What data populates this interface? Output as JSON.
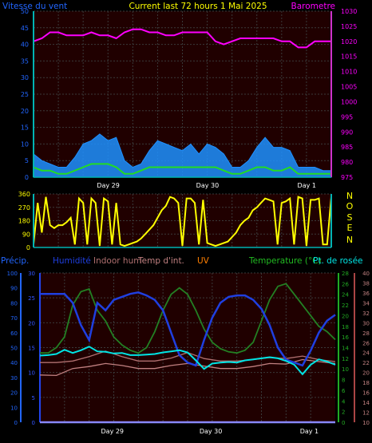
{
  "header": {
    "left": "Vitesse du vent",
    "center": "Current last 72 hours 1 Mai 2025",
    "right": "Barometre"
  },
  "colors": {
    "wind_label": "#2266ff",
    "title": "#ffff00",
    "baro_label": "#ff00ff",
    "wind_max": "#1e90ff",
    "wind_avg": "#22dd22",
    "baro": "#ff00ff",
    "dir": "#ffff00",
    "cardinal": "#ffff00",
    "precip_label": "#2266ff",
    "humidity": "#1f3fe0",
    "indoor_hum": "#b07070",
    "indoor_temp": "#c08080",
    "uv": "#ff7f00",
    "temp_label": "#22bb22",
    "dew": "#00e5e5",
    "temp": "#238023",
    "plot_bg": "#200000",
    "grid": "#3a3a3a"
  },
  "chart_data": [
    {
      "type": "line",
      "id": "wind_baro",
      "x_range": [
        0,
        72
      ],
      "day_labels": [
        {
          "x": 20,
          "label": "Day 29"
        },
        {
          "x": 44,
          "label": "Day 30"
        },
        {
          "x": 68,
          "label": "Day 1"
        }
      ],
      "y_left": {
        "label": "Vitesse du vent",
        "range": [
          0,
          50
        ],
        "ticks": [
          0,
          5,
          10,
          15,
          20,
          25,
          30,
          35,
          40,
          45,
          50
        ]
      },
      "y_right": {
        "label": "Barometre",
        "range": [
          975,
          1030
        ],
        "ticks": [
          975,
          980,
          985,
          990,
          995,
          1000,
          1005,
          1010,
          1015,
          1020,
          1025,
          1030
        ]
      },
      "series": [
        {
          "key": "wind_max",
          "axis": "left",
          "x": [
            0,
            2,
            4,
            6,
            8,
            10,
            12,
            14,
            16,
            18,
            20,
            22,
            24,
            26,
            28,
            30,
            32,
            34,
            36,
            38,
            40,
            42,
            44,
            46,
            48,
            50,
            52,
            54,
            56,
            58,
            60,
            62,
            64,
            66,
            68,
            70,
            72
          ],
          "y": [
            7,
            5,
            4,
            3,
            3,
            6,
            10,
            11,
            13,
            11,
            12,
            5,
            3,
            4,
            8,
            11,
            10,
            9,
            8,
            10,
            7,
            10,
            9,
            7,
            3,
            3,
            5,
            9,
            12,
            9,
            9,
            8,
            3,
            3,
            3,
            2,
            2
          ]
        },
        {
          "key": "wind_avg",
          "axis": "left",
          "x": [
            0,
            2,
            4,
            6,
            8,
            10,
            12,
            14,
            16,
            18,
            20,
            22,
            24,
            26,
            28,
            30,
            32,
            34,
            36,
            38,
            40,
            42,
            44,
            46,
            48,
            50,
            52,
            54,
            56,
            58,
            60,
            62,
            64,
            66,
            68,
            70,
            72
          ],
          "y": [
            3,
            2,
            2,
            1,
            1,
            2,
            3,
            4,
            4,
            4,
            3,
            1,
            1,
            2,
            3,
            3,
            3,
            3,
            3,
            3,
            3,
            3,
            3,
            2,
            1,
            1,
            2,
            3,
            3,
            2,
            2,
            3,
            1,
            1,
            1,
            1,
            1
          ]
        },
        {
          "key": "baro",
          "axis": "right",
          "x": [
            0,
            2,
            4,
            6,
            8,
            10,
            12,
            14,
            16,
            18,
            20,
            22,
            24,
            26,
            28,
            30,
            32,
            34,
            36,
            38,
            40,
            42,
            44,
            46,
            48,
            50,
            52,
            54,
            56,
            58,
            60,
            62,
            64,
            66,
            68,
            70,
            72
          ],
          "y": [
            1020,
            1021,
            1023,
            1023,
            1022,
            1022,
            1022,
            1023,
            1022,
            1022,
            1021,
            1023,
            1024,
            1024,
            1023,
            1023,
            1022,
            1022,
            1023,
            1023,
            1023,
            1023,
            1020,
            1019,
            1020,
            1021,
            1021,
            1021,
            1021,
            1021,
            1020,
            1020,
            1018,
            1018,
            1020,
            1020,
            1020
          ]
        }
      ]
    },
    {
      "type": "line",
      "id": "wind_direction",
      "x_range": [
        0,
        72
      ],
      "y_range": [
        0,
        360
      ],
      "y_ticks": [
        0,
        90,
        180,
        270,
        360
      ],
      "labels": {
        "N": "N",
        "O": "O",
        "S": "S",
        "E": "E",
        "N2": "N"
      },
      "series": [
        {
          "key": "dir",
          "x": [
            0,
            1,
            2,
            3,
            4,
            5,
            6,
            7,
            8,
            9,
            10,
            11,
            12,
            13,
            14,
            15,
            16,
            17,
            18,
            19,
            20,
            21,
            22,
            23,
            24,
            25,
            26,
            27,
            28,
            29,
            30,
            31,
            32,
            33,
            34,
            35,
            36,
            37,
            38,
            39,
            40,
            41,
            42,
            43,
            44,
            45,
            46,
            47,
            48,
            49,
            50,
            51,
            52,
            53,
            54,
            55,
            56,
            57,
            58,
            59,
            60,
            61,
            62,
            63,
            64,
            65,
            66,
            67,
            68,
            69,
            70,
            71,
            72
          ],
          "y": [
            20,
            300,
            100,
            340,
            150,
            130,
            150,
            150,
            170,
            200,
            20,
            330,
            300,
            20,
            330,
            300,
            10,
            330,
            310,
            20,
            300,
            20,
            10,
            20,
            30,
            40,
            60,
            90,
            120,
            150,
            200,
            250,
            280,
            340,
            330,
            300,
            10,
            330,
            330,
            300,
            20,
            320,
            30,
            20,
            10,
            20,
            30,
            40,
            70,
            100,
            150,
            180,
            200,
            250,
            270,
            300,
            330,
            320,
            310,
            20,
            300,
            310,
            330,
            20,
            340,
            330,
            10,
            320,
            320,
            330,
            20,
            20,
            340
          ]
        }
      ]
    },
    {
      "type": "line",
      "id": "temp_hum",
      "x_range": [
        0,
        72
      ],
      "day_labels": [
        {
          "x": 20,
          "label": "Day 29"
        },
        {
          "x": 44,
          "label": "Day 30"
        },
        {
          "x": 68,
          "label": "Day 1"
        }
      ],
      "legend": [
        {
          "key": "precip",
          "label": "Précip."
        },
        {
          "key": "humidity",
          "label": "Humidité"
        },
        {
          "key": "indoor_hum",
          "label": "Indoor hum"
        },
        {
          "key": "indoor_temp",
          "label": "Temp d'int."
        },
        {
          "key": "uv",
          "label": "UV"
        },
        {
          "key": "temp",
          "label": "Temperature (°C)"
        },
        {
          "key": "dew",
          "label": "Pt. de rosée"
        }
      ],
      "axes": {
        "precip": {
          "range": [
            0,
            100
          ],
          "ticks": [
            0,
            10,
            20,
            30,
            40,
            50,
            60,
            70,
            80,
            90,
            100
          ]
        },
        "humidity": {
          "range": [
            0,
            30
          ],
          "ticks": [
            0,
            5,
            10,
            15,
            20,
            25,
            30
          ]
        },
        "temp": {
          "range": [
            0,
            28
          ],
          "ticks": [
            0,
            2,
            4,
            6,
            8,
            10,
            12,
            14,
            16,
            18,
            20,
            22,
            24,
            26,
            28
          ]
        },
        "indoor": {
          "range": [
            10,
            40
          ],
          "ticks": [
            10,
            12,
            14,
            16,
            18,
            20,
            22,
            24,
            26,
            28,
            30,
            32,
            34,
            36,
            38,
            40
          ]
        }
      },
      "series": [
        {
          "key": "humidity",
          "axis": "precip",
          "x": [
            0,
            2,
            4,
            6,
            8,
            10,
            12,
            14,
            16,
            18,
            20,
            22,
            24,
            26,
            28,
            30,
            32,
            34,
            36,
            38,
            40,
            42,
            44,
            46,
            48,
            50,
            52,
            54,
            56,
            58,
            60,
            62,
            64,
            66,
            68,
            70,
            72
          ],
          "y": [
            86,
            86,
            86,
            86,
            80,
            65,
            55,
            80,
            75,
            82,
            84,
            86,
            87,
            85,
            82,
            75,
            60,
            45,
            40,
            38,
            55,
            70,
            80,
            84,
            85,
            85,
            82,
            76,
            65,
            50,
            42,
            40,
            38,
            48,
            60,
            68,
            72
          ]
        },
        {
          "key": "dew",
          "axis": "temp",
          "x": [
            0,
            2,
            4,
            6,
            8,
            10,
            12,
            14,
            16,
            18,
            20,
            22,
            24,
            26,
            28,
            30,
            32,
            34,
            36,
            38,
            40,
            42,
            44,
            46,
            48,
            50,
            52,
            54,
            56,
            58,
            60,
            62,
            64,
            66,
            68,
            70,
            72
          ],
          "y": [
            12.5,
            12.6,
            12.8,
            13.6,
            13,
            13.5,
            14.2,
            13.3,
            13.2,
            12.9,
            13,
            12.6,
            12.6,
            12.7,
            12.8,
            13.1,
            13.3,
            13.5,
            13.1,
            11.6,
            10,
            11,
            11.2,
            11.3,
            11.2,
            11.6,
            11.8,
            12,
            12.2,
            12,
            11.5,
            10.8,
            9,
            10.8,
            11.8,
            11.4,
            10.8
          ]
        },
        {
          "key": "temp",
          "axis": "temp",
          "x": [
            0,
            2,
            4,
            6,
            8,
            10,
            12,
            14,
            16,
            18,
            20,
            22,
            24,
            26,
            28,
            30,
            32,
            34,
            36,
            38,
            40,
            42,
            44,
            46,
            48,
            50,
            52,
            54,
            56,
            58,
            60,
            62,
            64,
            66,
            68,
            70,
            72
          ],
          "y": [
            13,
            13,
            14,
            16,
            22,
            24.5,
            25,
            21,
            19,
            16,
            14.5,
            13.5,
            13,
            14,
            17,
            21,
            24,
            25.2,
            24,
            21,
            17.5,
            15,
            13.8,
            13.2,
            13,
            13.5,
            15,
            19,
            23,
            25.5,
            26,
            24,
            22,
            20,
            18,
            17,
            15.5
          ]
        },
        {
          "key": "indoor_temp",
          "axis": "indoor",
          "x": [
            0,
            4,
            8,
            12,
            16,
            20,
            24,
            28,
            32,
            36,
            40,
            44,
            48,
            52,
            56,
            60,
            64,
            68,
            72
          ],
          "y": [
            19.5,
            19.4,
            20.8,
            21.2,
            21.8,
            21.4,
            20.8,
            20.8,
            21.4,
            21.8,
            21.3,
            20.8,
            20.8,
            21.2,
            21.8,
            21.7,
            22.6,
            22.2,
            21.8
          ]
        },
        {
          "key": "indoor_hum",
          "axis": "indoor",
          "x": [
            0,
            4,
            8,
            12,
            16,
            20,
            24,
            28,
            32,
            36,
            40,
            44,
            48,
            52,
            56,
            60,
            64,
            68,
            72
          ],
          "y": [
            22,
            22,
            22.3,
            23.2,
            24.3,
            23.2,
            22.3,
            22.3,
            22.9,
            24,
            22.8,
            22.3,
            22.3,
            22.6,
            23,
            22.8,
            23.3,
            22.6,
            22.2
          ]
        },
        {
          "key": "precip",
          "axis": "precip",
          "x": [
            0,
            72
          ],
          "y": [
            0,
            0
          ]
        }
      ]
    }
  ]
}
